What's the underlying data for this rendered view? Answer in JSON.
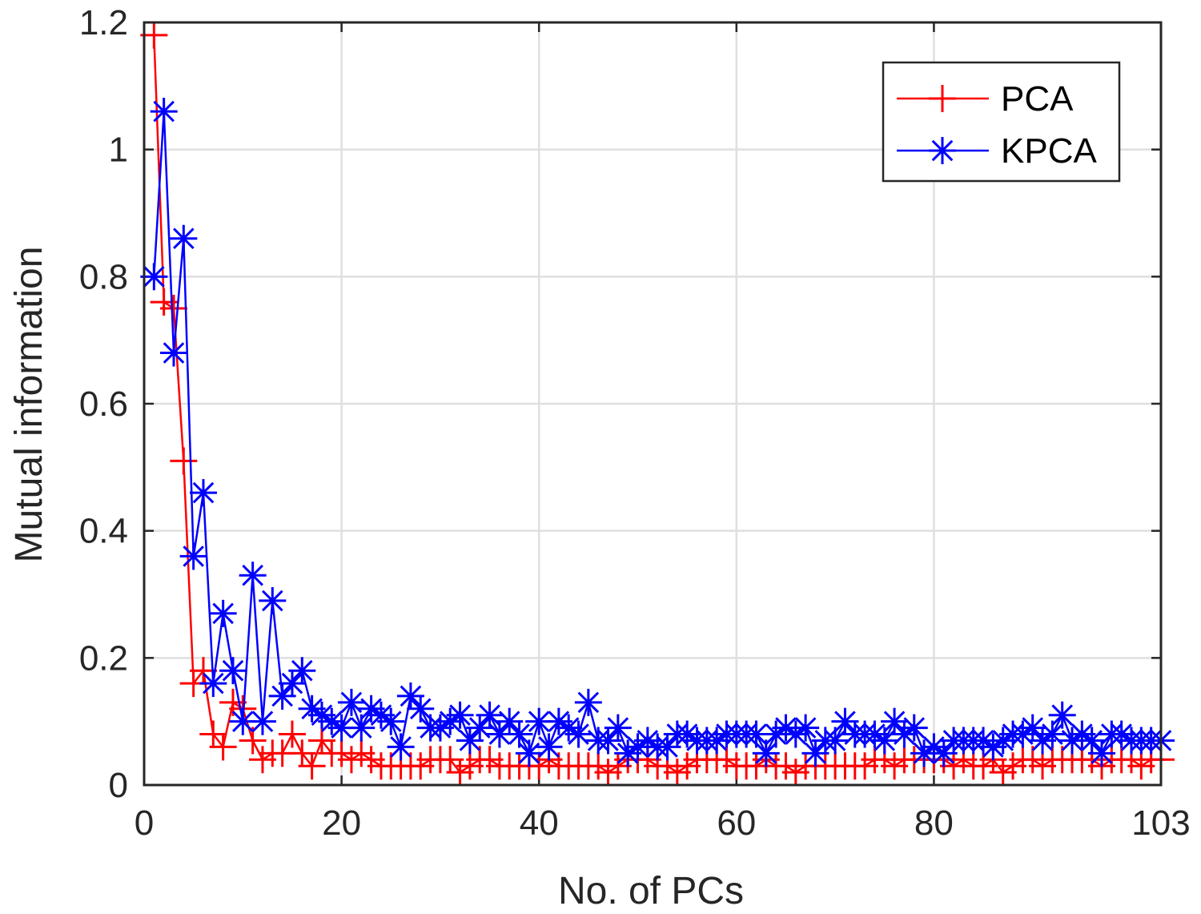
{
  "chart_data": {
    "type": "line",
    "xlabel": "No. of PCs",
    "ylabel": "Mutual information",
    "xlim": [
      0,
      103
    ],
    "ylim": [
      0,
      1.2
    ],
    "xticks": [
      0,
      20,
      40,
      60,
      80,
      103
    ],
    "yticks": [
      0,
      0.2,
      0.4,
      0.6,
      0.8,
      1,
      1.2
    ],
    "xtick_labels": [
      "0",
      "20",
      "40",
      "60",
      "80",
      "103"
    ],
    "ytick_labels": [
      "0",
      "0.2",
      "0.4",
      "0.6",
      "0.8",
      "1",
      "1.2"
    ],
    "grid": true,
    "legend_position": "top-right",
    "x": [
      1,
      2,
      3,
      4,
      5,
      6,
      7,
      8,
      9,
      10,
      11,
      12,
      13,
      14,
      15,
      16,
      17,
      18,
      19,
      20,
      21,
      22,
      23,
      24,
      25,
      26,
      27,
      28,
      29,
      30,
      31,
      32,
      33,
      34,
      35,
      36,
      37,
      38,
      39,
      40,
      41,
      42,
      43,
      44,
      45,
      46,
      47,
      48,
      49,
      50,
      51,
      52,
      53,
      54,
      55,
      56,
      57,
      58,
      59,
      60,
      61,
      62,
      63,
      64,
      65,
      66,
      67,
      68,
      69,
      70,
      71,
      72,
      73,
      74,
      75,
      76,
      77,
      78,
      79,
      80,
      81,
      82,
      83,
      84,
      85,
      86,
      87,
      88,
      89,
      90,
      91,
      92,
      93,
      94,
      95,
      96,
      97,
      98,
      99,
      100,
      101,
      102,
      103
    ],
    "series": [
      {
        "name": "PCA",
        "color": "#ff0000",
        "marker": "plus",
        "values": [
          1.18,
          0.76,
          0.75,
          0.51,
          0.16,
          0.18,
          0.08,
          0.06,
          0.13,
          0.12,
          0.07,
          0.04,
          0.05,
          0.05,
          0.08,
          0.05,
          0.03,
          0.07,
          0.05,
          0.05,
          0.04,
          0.05,
          0.04,
          0.03,
          0.03,
          0.03,
          0.03,
          0.03,
          0.04,
          0.04,
          0.04,
          0.02,
          0.03,
          0.04,
          0.04,
          0.03,
          0.03,
          0.03,
          0.03,
          0.03,
          0.04,
          0.03,
          0.03,
          0.03,
          0.03,
          0.03,
          0.02,
          0.03,
          0.04,
          0.04,
          0.04,
          0.03,
          0.03,
          0.02,
          0.03,
          0.04,
          0.04,
          0.04,
          0.04,
          0.03,
          0.03,
          0.03,
          0.04,
          0.03,
          0.03,
          0.02,
          0.03,
          0.03,
          0.03,
          0.03,
          0.03,
          0.03,
          0.03,
          0.04,
          0.04,
          0.03,
          0.04,
          0.04,
          0.04,
          0.04,
          0.04,
          0.03,
          0.04,
          0.03,
          0.03,
          0.04,
          0.02,
          0.03,
          0.04,
          0.04,
          0.03,
          0.04,
          0.04,
          0.04,
          0.04,
          0.04,
          0.03,
          0.04,
          0.04,
          0.04,
          0.03,
          0.04,
          0.04
        ]
      },
      {
        "name": "KPCA",
        "color": "#0000ff",
        "marker": "asterisk",
        "values": [
          0.8,
          1.06,
          0.68,
          0.86,
          0.36,
          0.46,
          0.16,
          0.27,
          0.18,
          0.1,
          0.33,
          0.1,
          0.29,
          0.14,
          0.16,
          0.18,
          0.12,
          0.11,
          0.1,
          0.09,
          0.13,
          0.09,
          0.12,
          0.11,
          0.1,
          0.06,
          0.14,
          0.12,
          0.09,
          0.09,
          0.1,
          0.11,
          0.07,
          0.09,
          0.11,
          0.08,
          0.1,
          0.08,
          0.05,
          0.1,
          0.06,
          0.1,
          0.09,
          0.08,
          0.13,
          0.07,
          0.07,
          0.09,
          0.05,
          0.06,
          0.07,
          0.06,
          0.06,
          0.08,
          0.08,
          0.07,
          0.07,
          0.07,
          0.08,
          0.08,
          0.08,
          0.08,
          0.05,
          0.08,
          0.09,
          0.08,
          0.09,
          0.05,
          0.07,
          0.07,
          0.1,
          0.08,
          0.08,
          0.08,
          0.07,
          0.1,
          0.08,
          0.09,
          0.05,
          0.06,
          0.05,
          0.07,
          0.07,
          0.07,
          0.07,
          0.06,
          0.07,
          0.08,
          0.08,
          0.09,
          0.07,
          0.08,
          0.11,
          0.07,
          0.08,
          0.07,
          0.05,
          0.08,
          0.08,
          0.07,
          0.07,
          0.07,
          0.07
        ]
      }
    ]
  }
}
